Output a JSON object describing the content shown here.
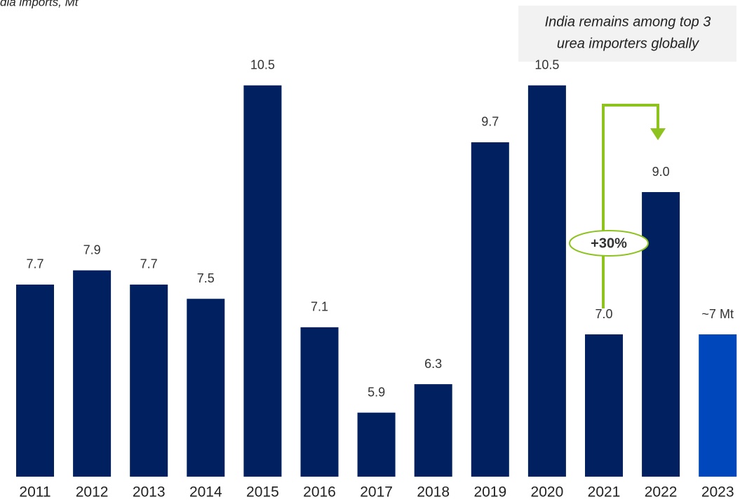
{
  "chart_data": {
    "type": "bar",
    "title": "dia imports, Mt",
    "categories": [
      "2011",
      "2012",
      "2013",
      "2014",
      "2015",
      "2016",
      "2017",
      "2018",
      "2019",
      "2020",
      "2021",
      "2022",
      "2023"
    ],
    "values": [
      7.7,
      7.9,
      7.7,
      7.5,
      10.5,
      7.1,
      5.9,
      6.3,
      9.7,
      10.5,
      7.0,
      9.0,
      7
    ],
    "value_labels": [
      "7.7",
      "7.9",
      "7.7",
      "7.5",
      "10.5",
      "7.1",
      "5.9",
      "6.3",
      "9.7",
      "10.5",
      "7.0",
      "9.0",
      "~7 Mt"
    ],
    "colors": [
      "#002060",
      "#002060",
      "#002060",
      "#002060",
      "#002060",
      "#002060",
      "#002060",
      "#002060",
      "#002060",
      "#002060",
      "#002060",
      "#002060",
      "#0047bb"
    ],
    "ylim": [
      5,
      11.7
    ],
    "annotation": [
      "India remains among top 3",
      "urea importers globally"
    ],
    "change_label": "+30%"
  }
}
